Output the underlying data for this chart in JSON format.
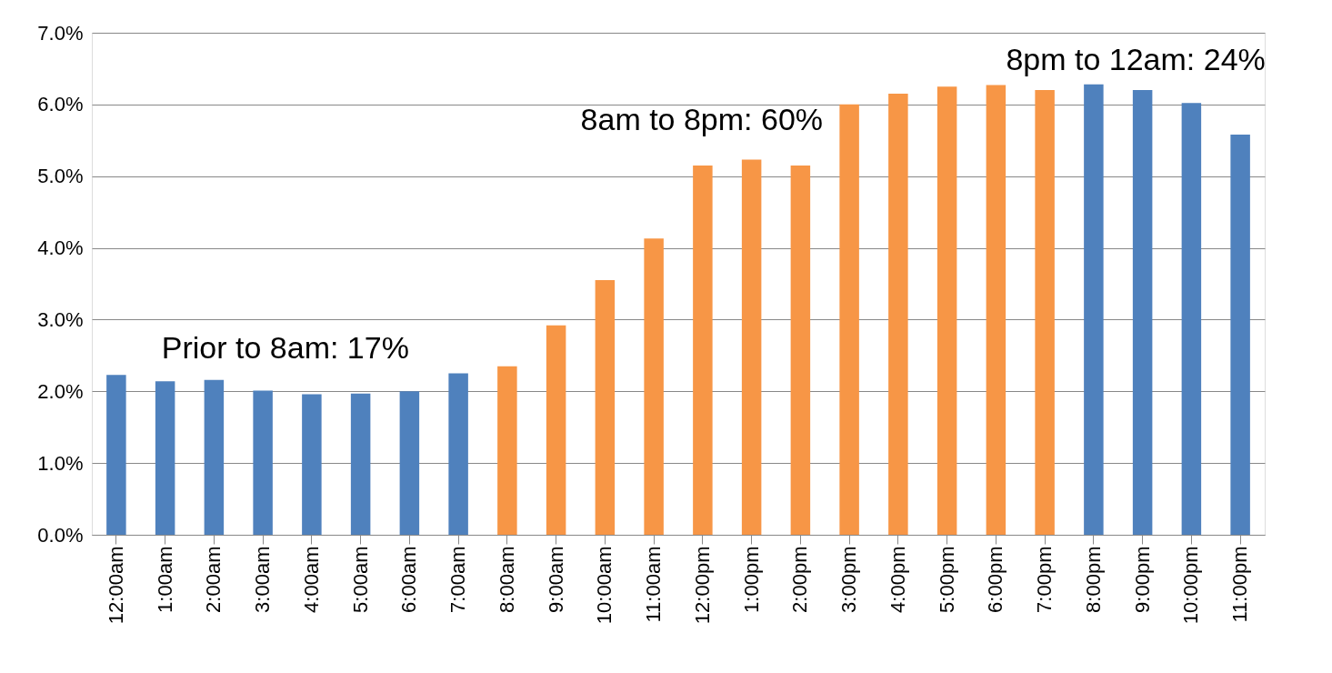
{
  "chart_data": {
    "type": "bar",
    "categories": [
      "12:00am",
      "1:00am",
      "2:00am",
      "3:00am",
      "4:00am",
      "5:00am",
      "6:00am",
      "7:00am",
      "8:00am",
      "9:00am",
      "10:00am",
      "11:00am",
      "12:00pm",
      "1:00pm",
      "2:00pm",
      "3:00pm",
      "4:00pm",
      "5:00pm",
      "6:00pm",
      "7:00pm",
      "8:00pm",
      "9:00pm",
      "10:00pm",
      "11:00pm"
    ],
    "values": [
      2.23,
      2.14,
      2.16,
      2.01,
      1.96,
      1.97,
      2.0,
      2.25,
      2.35,
      2.92,
      3.55,
      4.13,
      5.15,
      5.23,
      5.15,
      6.0,
      6.15,
      6.25,
      6.27,
      6.2,
      6.28,
      6.2,
      6.02,
      5.58
    ],
    "colors": [
      "#4f81bd",
      "#4f81bd",
      "#4f81bd",
      "#4f81bd",
      "#4f81bd",
      "#4f81bd",
      "#4f81bd",
      "#4f81bd",
      "#f79646",
      "#f79646",
      "#f79646",
      "#f79646",
      "#f79646",
      "#f79646",
      "#f79646",
      "#f79646",
      "#f79646",
      "#f79646",
      "#f79646",
      "#f79646",
      "#4f81bd",
      "#4f81bd",
      "#4f81bd",
      "#4f81bd"
    ],
    "ylim": [
      0,
      7
    ],
    "yticks": [
      {
        "value": 0,
        "label": "0.0%"
      },
      {
        "value": 1,
        "label": "1.0%"
      },
      {
        "value": 2,
        "label": "2.0%"
      },
      {
        "value": 3,
        "label": "3.0%"
      },
      {
        "value": 4,
        "label": "4.0%"
      },
      {
        "value": 5,
        "label": "5.0%"
      },
      {
        "value": 6,
        "label": "6.0%"
      },
      {
        "value": 7,
        "label": "7.0%"
      }
    ],
    "grid": "y",
    "annotations": [
      "Prior to 8am: 17%",
      "8am to 8pm: 60%",
      "8pm to 12am: 24%"
    ]
  }
}
